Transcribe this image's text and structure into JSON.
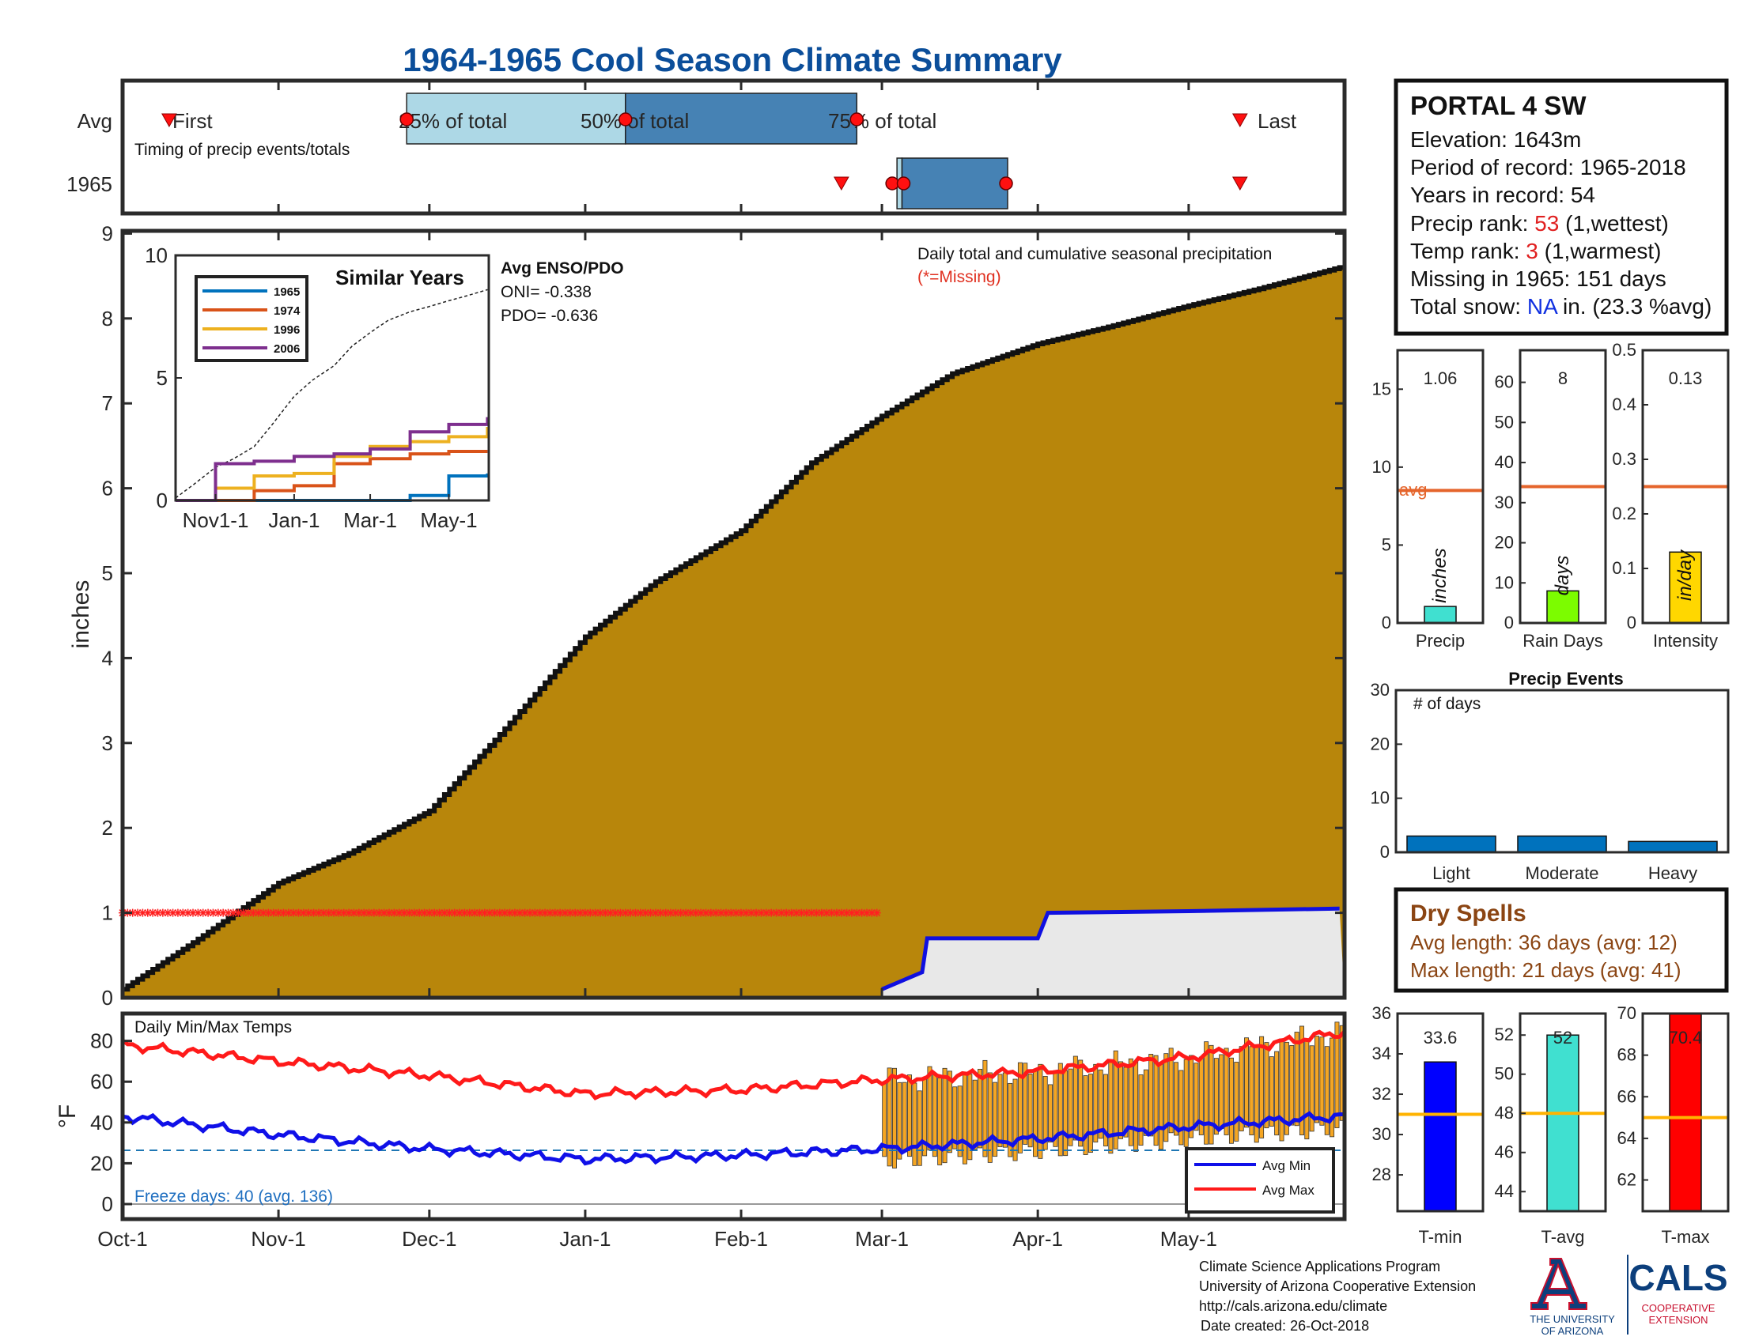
{
  "colors": {
    "title": "#0b4e9a",
    "cumulative_fill": "#b8860b",
    "avg_precip_line": "#1010e0",
    "avg_fill": "#e8e8e8",
    "missing": "#ff2020",
    "avg_max": "#ff1a1a",
    "avg_min": "#1010e8",
    "daily_bars": "#f5a623",
    "light_box": "#add8e6",
    "dark_box": "#4682b4",
    "ref_orange": "#e5652c",
    "ref_gold": "#ffb300",
    "dry_spells": "#8b4513",
    "cals_blue": "#0c3f7c",
    "cals_red": "#c8102e"
  },
  "title": "1964-1965 Cool Season Climate Summary",
  "timing": {
    "avg_label": "Avg",
    "year_label": "1965",
    "subtitle": "Timing of precip events/totals",
    "first": "First",
    "p25": "25% of total",
    "p50": "50% of total",
    "p75": "75% of total",
    "last": "Last",
    "avg_markers": {
      "first": 0.3,
      "p25": 56.5,
      "p50": 100,
      "p75": 146,
      "last": 223
    },
    "year_markers": {
      "first": 142,
      "p25": 154,
      "p50": 155,
      "p75": 176,
      "last": 223
    }
  },
  "station": {
    "name": "PORTAL 4 SW",
    "elevation": "Elevation: 1643m",
    "period": "Period of record: 1965-2018",
    "years": "Years in record: 54",
    "precip_rank_prefix": "Precip rank: ",
    "precip_rank_value": "53",
    "precip_rank_suffix": " (1,wettest)",
    "temp_rank_prefix": "Temp rank: ",
    "temp_rank_value": "3",
    "temp_rank_suffix": " (1,warmest)",
    "missing": "Missing in 1965: 151 days",
    "snow_prefix": "Total snow: ",
    "snow_value": "NA",
    "snow_suffix": " in. (23.3 %avg)"
  },
  "main_chart": {
    "ylabel": "inches",
    "note": "Daily total and cumulative seasonal precipitation",
    "missing_note": "(*=Missing)",
    "yticks": [
      "0",
      "1",
      "2",
      "3",
      "4",
      "5",
      "6",
      "7",
      "8",
      "9"
    ],
    "xticks": [
      "Oct-1",
      "Nov-1",
      "Dec-1",
      "Jan-1",
      "Feb-1",
      "Mar-1",
      "Apr-1",
      "May-1"
    ]
  },
  "inset": {
    "title": "Similar Years",
    "enso_title": "Avg ENSO/PDO",
    "oni": "ONI= -0.338",
    "pdo": "PDO= -0.636",
    "yticks": [
      "0",
      "5",
      "10"
    ],
    "xticks": [
      "Nov1-1",
      "Jan-1",
      "Mar-1",
      "May-1"
    ],
    "legend": [
      {
        "name": "1965",
        "color": "#0072bd"
      },
      {
        "name": "1974",
        "color": "#d95319"
      },
      {
        "name": "1996",
        "color": "#edb120"
      },
      {
        "name": "2006",
        "color": "#7e2f8e"
      }
    ]
  },
  "temps_chart": {
    "title": "Daily Min/Max Temps",
    "ylabel": "°F",
    "yticks": [
      "0",
      "20",
      "40",
      "60",
      "80"
    ],
    "freeze": "Freeze days: 40 (avg. 136)",
    "legend_min": "Avg Min",
    "legend_max": "Avg Max"
  },
  "summary_bars": {
    "avg_label": "avg",
    "precip": {
      "value": "1.06",
      "unit": "inches",
      "label": "Precip",
      "ticks": [
        "0",
        "5",
        "10",
        "15"
      ]
    },
    "rain_days": {
      "value": "8",
      "unit": "days",
      "label": "Rain Days",
      "ticks": [
        "0",
        "10",
        "20",
        "30",
        "40",
        "50",
        "60"
      ]
    },
    "intensity": {
      "value": "0.13",
      "unit": "in/day",
      "label": "Intensity",
      "ticks": [
        "0",
        "0.1",
        "0.2",
        "0.3",
        "0.4",
        "0.5"
      ]
    }
  },
  "precip_events": {
    "title": "Precip Events",
    "subtitle": "# of days",
    "ticks": [
      "0",
      "10",
      "20",
      "30"
    ],
    "labels": [
      "Light",
      "Moderate",
      "Heavy"
    ]
  },
  "dry_spells": {
    "title": "Dry Spells",
    "avg": "Avg length: 36 days (avg: 12)",
    "max": "Max length: 21 days (avg: 41)"
  },
  "temp_bars": {
    "tmin": {
      "value": "33.6",
      "label": "T-min",
      "ticks": [
        "28",
        "30",
        "32",
        "34",
        "36"
      ]
    },
    "tavg": {
      "value": "52",
      "label": "T-avg",
      "ticks": [
        "44",
        "46",
        "48",
        "50",
        "52"
      ]
    },
    "tmax": {
      "value": "70.4",
      "label": "T-max",
      "ticks": [
        "62",
        "64",
        "66",
        "68",
        "70"
      ]
    }
  },
  "footer": {
    "line1": "Climate Science Applications Program",
    "line2": "University of Arizona Cooperative Extension",
    "line3": "http://cals.arizona.edu/climate",
    "line4": "Date created: 26-Oct-2018",
    "ua_line1": "THE UNIVERSITY",
    "ua_line2": "OF ARIZONA",
    "cals": "CALS",
    "coop1": "COOPERATIVE",
    "coop2": "EXTENSION"
  },
  "chart_data": [
    {
      "type": "area",
      "title": "Daily total and cumulative seasonal precipitation",
      "ylabel": "inches",
      "ylim": [
        0,
        9
      ],
      "x_range": [
        "Oct-1",
        "May-31"
      ],
      "series": [
        {
          "name": "1965",
          "x": [
            "Oct-1",
            "Oct-15",
            "Nov-1",
            "Nov-15",
            "Dec-1",
            "Dec-15",
            "Jan-1",
            "Jan-15",
            "Feb-1",
            "Feb-15",
            "Mar-1",
            "Mar-15",
            "Apr-1",
            "Apr-15",
            "May-1",
            "May-15",
            "May-31"
          ],
          "values": [
            0.1,
            0.65,
            1.35,
            1.7,
            2.2,
            3.1,
            4.25,
            4.9,
            5.5,
            6.3,
            6.85,
            7.35,
            7.7,
            7.9,
            8.15,
            8.35,
            8.6
          ]
        },
        {
          "name": "Avg",
          "x": [
            "Oct-1",
            "Mar-1",
            "Mar-9",
            "Mar-10",
            "Apr-1",
            "Apr-3",
            "May-1",
            "May-31"
          ],
          "values": [
            0,
            0.1,
            0.3,
            0.7,
            0.7,
            1.0,
            1.02,
            1.05
          ]
        }
      ]
    },
    {
      "type": "line",
      "title": "Similar Years",
      "ylim": [
        0,
        10
      ],
      "categories": [
        "Oct-1",
        "Nov-1",
        "Dec-1",
        "Jan-1",
        "Feb-1",
        "Mar-1",
        "Apr-1",
        "May-1",
        "May-31"
      ],
      "series": [
        {
          "name": "1965",
          "values": [
            0,
            0,
            0,
            0,
            0,
            0,
            0.2,
            1.0,
            1.1
          ]
        },
        {
          "name": "1974",
          "values": [
            0,
            0,
            0.4,
            0.6,
            1.5,
            1.7,
            1.9,
            2.0,
            2.0
          ]
        },
        {
          "name": "1996",
          "values": [
            0,
            0.5,
            1.0,
            1.1,
            1.8,
            2.2,
            2.4,
            2.6,
            3.0
          ]
        },
        {
          "name": "2006",
          "values": [
            0,
            1.5,
            1.6,
            1.8,
            1.9,
            2.1,
            2.8,
            3.1,
            3.4
          ]
        }
      ]
    },
    {
      "type": "line",
      "title": "Daily Min/Max Temps",
      "ylabel": "°F",
      "ylim": [
        -2,
        90
      ],
      "categories": [
        "Oct-1",
        "Nov-1",
        "Dec-1",
        "Jan-1",
        "Feb-1",
        "Mar-1",
        "Apr-1",
        "May-1",
        "May-31"
      ],
      "series": [
        {
          "name": "Avg Max",
          "values": [
            78,
            70,
            63,
            54,
            56,
            61,
            65,
            72,
            84
          ]
        },
        {
          "name": "Avg Min",
          "values": [
            43,
            34,
            27,
            22,
            24,
            27,
            32,
            38,
            43
          ]
        }
      ]
    },
    {
      "type": "bar",
      "title": "Precip Events",
      "categories": [
        "Light",
        "Moderate",
        "Heavy"
      ],
      "values": [
        3,
        3,
        2
      ],
      "ylim": [
        0,
        30
      ]
    },
    {
      "type": "bar",
      "categories": [
        "Precip",
        "Rain Days",
        "Intensity"
      ],
      "values": [
        1.06,
        8,
        0.13
      ],
      "averages": [
        8.5,
        34,
        0.25
      ]
    },
    {
      "type": "bar",
      "categories": [
        "T-min",
        "T-avg",
        "T-max"
      ],
      "values": [
        33.6,
        52,
        70.4
      ],
      "averages": [
        31,
        48,
        65
      ]
    }
  ]
}
